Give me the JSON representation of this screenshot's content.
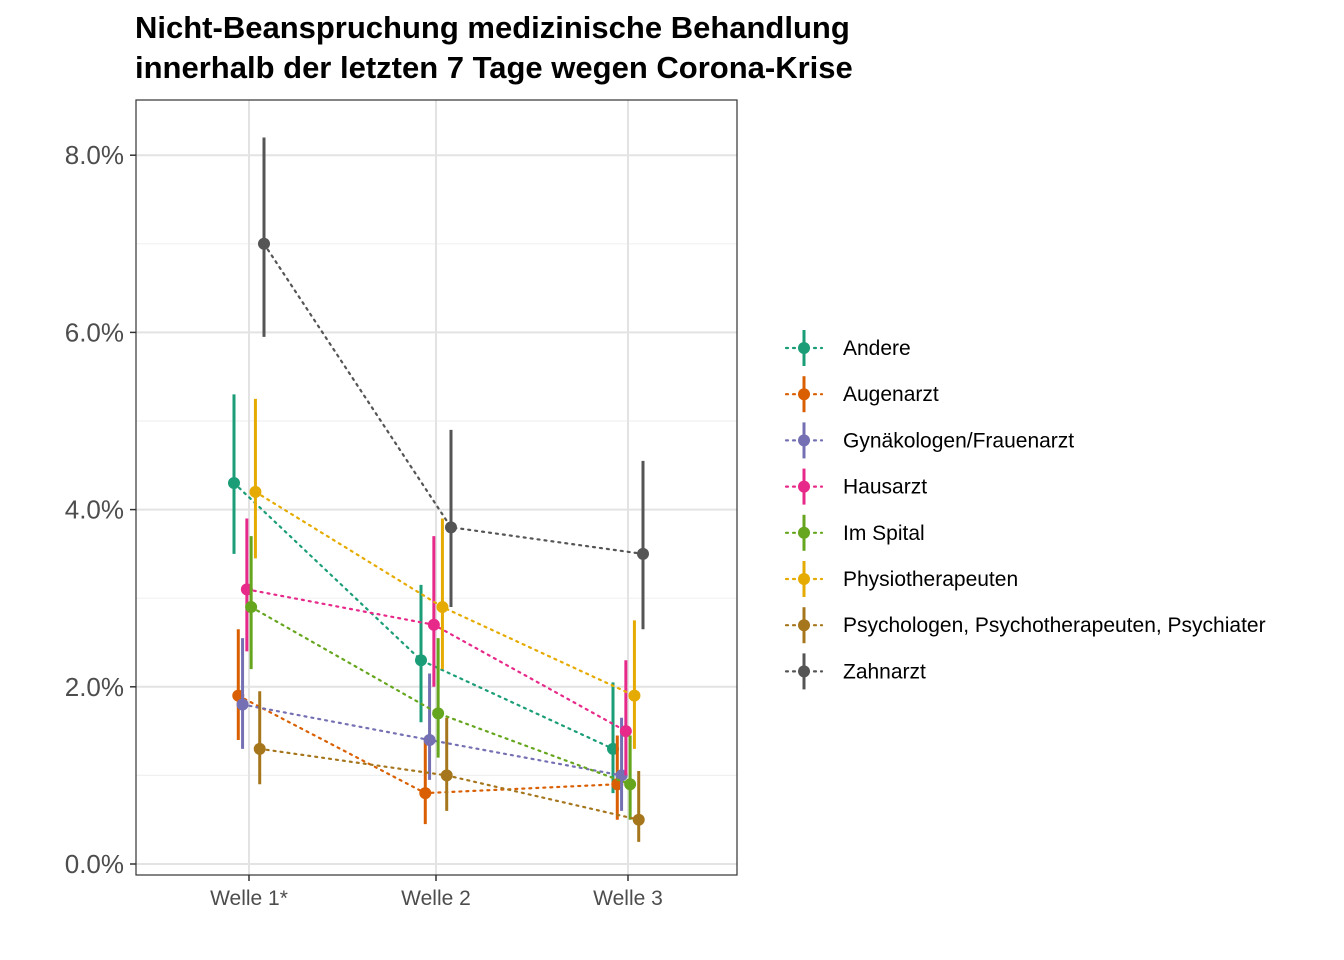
{
  "chart_data": {
    "type": "line",
    "title_lines": [
      "Nicht-Beanspruchung medizinische Behandlung",
      "innerhalb der letzten 7 Tage wegen Corona-Krise"
    ],
    "xlabel": "",
    "ylabel": "",
    "categories": [
      "Welle 1*",
      "Welle 2",
      "Welle 3"
    ],
    "ylim": [
      0,
      8.5
    ],
    "yticks": [
      0,
      2,
      4,
      6,
      8
    ],
    "ytick_labels": [
      "0.0%",
      "2.0%",
      "4.0%",
      "6.0%",
      "8.0%"
    ],
    "grid": true,
    "legend_position": "right",
    "series": [
      {
        "name": "Andere",
        "color": "#1b9e77",
        "values": [
          4.3,
          2.3,
          1.3
        ],
        "lower": [
          3.5,
          1.6,
          0.8
        ],
        "upper": [
          5.3,
          3.15,
          2.05
        ]
      },
      {
        "name": "Augenarzt",
        "color": "#d95f02",
        "values": [
          1.9,
          0.8,
          0.9
        ],
        "lower": [
          1.4,
          0.45,
          0.5
        ],
        "upper": [
          2.65,
          1.4,
          1.45
        ]
      },
      {
        "name": "Gynäkologen/Frauenarzt",
        "color": "#7570b3",
        "values": [
          1.8,
          1.4,
          1.0
        ],
        "lower": [
          1.3,
          0.95,
          0.6
        ],
        "upper": [
          2.55,
          2.15,
          1.65
        ]
      },
      {
        "name": "Hausarzt",
        "color": "#e7298a",
        "values": [
          3.1,
          2.7,
          1.5
        ],
        "lower": [
          2.4,
          2.0,
          1.0
        ],
        "upper": [
          3.9,
          3.7,
          2.3
        ]
      },
      {
        "name": "Im Spital",
        "color": "#66a61e",
        "values": [
          2.9,
          1.7,
          0.9
        ],
        "lower": [
          2.2,
          1.2,
          0.5
        ],
        "upper": [
          3.7,
          2.55,
          1.45
        ]
      },
      {
        "name": "Physiotherapeuten",
        "color": "#e6ab02",
        "values": [
          4.2,
          2.9,
          1.9
        ],
        "lower": [
          3.45,
          2.2,
          1.3
        ],
        "upper": [
          5.25,
          3.9,
          2.75
        ]
      },
      {
        "name": "Psychologen, Psychotherapeuten, Psychiater",
        "color": "#a6761d",
        "values": [
          1.3,
          1.0,
          0.5
        ],
        "lower": [
          0.9,
          0.6,
          0.25
        ],
        "upper": [
          1.95,
          1.65,
          1.05
        ]
      },
      {
        "name": "Zahnarzt",
        "color": "#555555",
        "values": [
          7.0,
          3.8,
          3.5
        ],
        "lower": [
          5.95,
          2.9,
          2.65
        ],
        "upper": [
          8.2,
          4.9,
          4.55
        ]
      }
    ]
  }
}
